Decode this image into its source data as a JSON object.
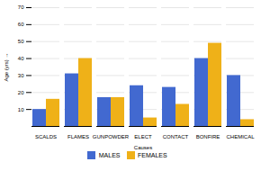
{
  "chart_data": {
    "type": "bar",
    "xlabel": "Causes",
    "ylabel": "Age (yrs)",
    "categories": [
      "SCALDS",
      "FLAMES",
      "GUNPOWDER",
      "ELECT",
      "CONTACT",
      "BONFIRE",
      "CHEMICAL"
    ],
    "series": [
      {
        "name": "MALES",
        "values": [
          10,
          31,
          17,
          24,
          23,
          40,
          30
        ]
      },
      {
        "name": "FEMALES",
        "values": [
          16,
          40,
          17,
          5,
          13,
          49,
          4
        ]
      }
    ],
    "ylim": [
      0,
      70
    ],
    "yticks": [
      10,
      20,
      30,
      40,
      50,
      60,
      70
    ],
    "grid": true,
    "legend": "bottom"
  }
}
